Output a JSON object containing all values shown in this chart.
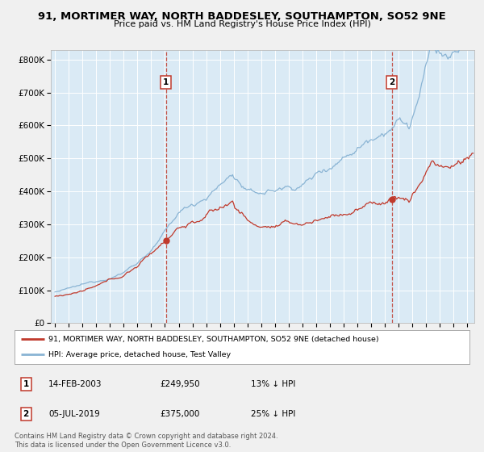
{
  "title1": "91, MORTIMER WAY, NORTH BADDESLEY, SOUTHAMPTON, SO52 9NE",
  "title2": "Price paid vs. HM Land Registry's House Price Index (HPI)",
  "ylabel_ticks": [
    "£0",
    "£100K",
    "£200K",
    "£300K",
    "£400K",
    "£500K",
    "£600K",
    "£700K",
    "£800K"
  ],
  "ytick_values": [
    0,
    100000,
    200000,
    300000,
    400000,
    500000,
    600000,
    700000,
    800000
  ],
  "ylim": [
    0,
    830000
  ],
  "xlim_start": 1994.7,
  "xlim_end": 2025.5,
  "hpi_color": "#8ab4d4",
  "hpi_fill_color": "#c8dff0",
  "price_color": "#c0392b",
  "plot_bg_color": "#daeaf5",
  "fig_bg_color": "#f0f0f0",
  "grid_color": "#ffffff",
  "sale1_x": 2003.12,
  "sale1_price": 249950,
  "sale2_x": 2019.51,
  "sale2_price": 375000,
  "legend_line1": "91, MORTIMER WAY, NORTH BADDESLEY, SOUTHAMPTON, SO52 9NE (detached house)",
  "legend_line2": "HPI: Average price, detached house, Test Valley",
  "annotation1_date": "14-FEB-2003",
  "annotation1_price": "£249,950",
  "annotation1_hpi": "13% ↓ HPI",
  "annotation2_date": "05-JUL-2019",
  "annotation2_price": "£375,000",
  "annotation2_hpi": "25% ↓ HPI",
  "footer": "Contains HM Land Registry data © Crown copyright and database right 2024.\nThis data is licensed under the Open Government Licence v3.0."
}
